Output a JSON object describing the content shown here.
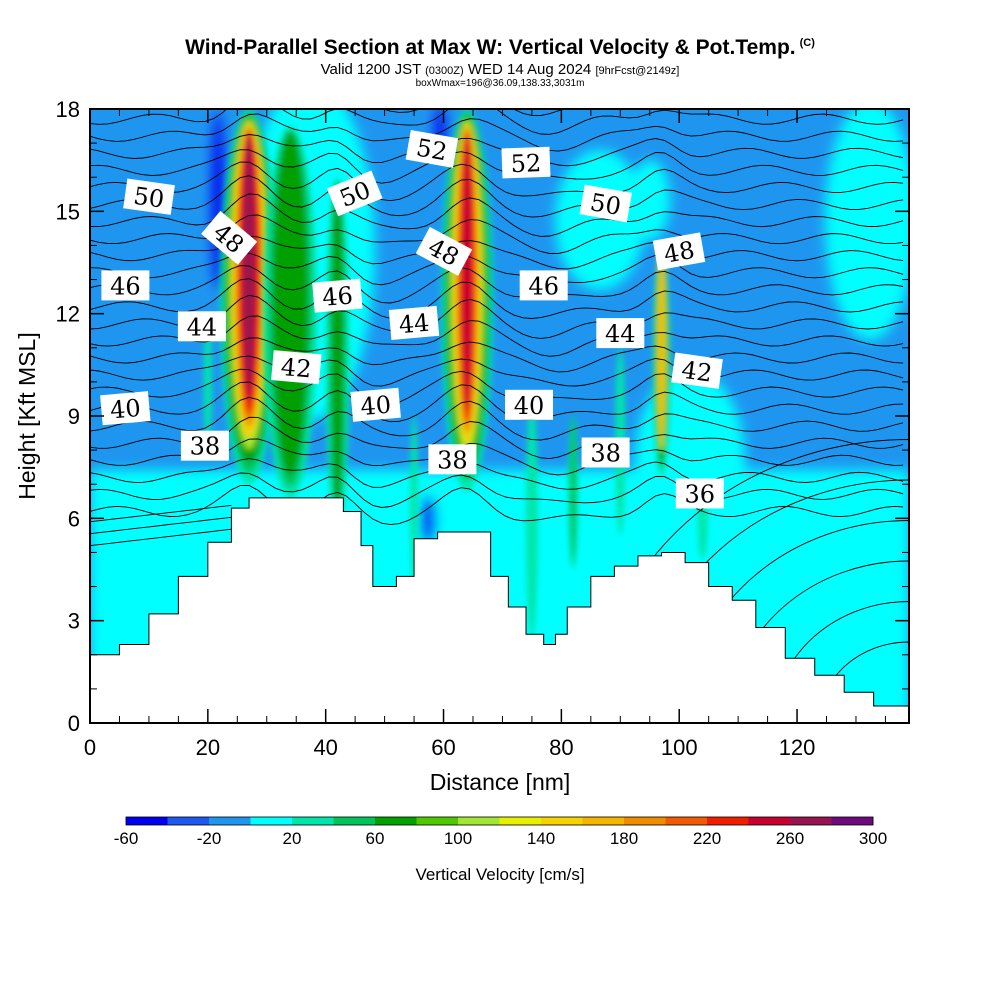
{
  "header": {
    "title": "Wind-Parallel Section at Max W: Vertical Velocity & Pot.Temp.",
    "copyright": "(C)",
    "valid_prefix": "Valid 1200 JST",
    "valid_utc": "(0300Z)",
    "valid_date": "WED 14 Aug 2024",
    "forecast": "[9hrFcst@2149z]",
    "boxline": "boxWmax=196@36.09,138.33,3031m"
  },
  "colorbar": {
    "label": "Vertical Velocity [cm/s]",
    "colors": [
      "#0000f0",
      "#1e5af0",
      "#1e96f0",
      "#00ffff",
      "#00e6aa",
      "#00c35a",
      "#00a000",
      "#50c800",
      "#a0e632",
      "#e6f000",
      "#f5d200",
      "#f5b400",
      "#f08c00",
      "#f05a00",
      "#f01e00",
      "#c80032",
      "#961450",
      "#6e0a7d"
    ],
    "tick_labels": [
      "-60",
      "-20",
      "20",
      "60",
      "100",
      "140",
      "180",
      "220",
      "260",
      "300"
    ]
  },
  "chart_data": {
    "type": "heatmap",
    "title": "Wind-Parallel Section at Max W: Vertical Velocity & Pot.Temp.",
    "xlabel": "Distance [nm]",
    "ylabel": "Height [Kft MSL]",
    "xlim": [
      0,
      139
    ],
    "ylim": [
      0,
      18
    ],
    "x_ticks": [
      "0",
      "20",
      "40",
      "60",
      "80",
      "100",
      "120"
    ],
    "y_ticks": [
      "0",
      "3",
      "6",
      "9",
      "12",
      "15",
      "18"
    ],
    "fill_variable": "Vertical Velocity [cm/s]",
    "contour_variable": "Pot.Temp. (C)",
    "updraft_cores": [
      {
        "x": 27,
        "peak_w": 270
      },
      {
        "x": 34,
        "peak_w": 100
      },
      {
        "x": 42,
        "peak_w": 60
      },
      {
        "x": 63,
        "peak_w": 260
      },
      {
        "x": 97,
        "peak_w": 140
      }
    ],
    "terrain": [
      [
        0,
        2
      ],
      [
        5,
        2.3
      ],
      [
        10,
        3.2
      ],
      [
        15,
        4.3
      ],
      [
        20,
        5.3
      ],
      [
        24,
        6.3
      ],
      [
        27,
        6.6
      ],
      [
        33,
        6.6
      ],
      [
        40,
        6.6
      ],
      [
        43,
        6.2
      ],
      [
        46,
        5.2
      ],
      [
        48,
        4
      ],
      [
        52,
        4.3
      ],
      [
        55,
        5.4
      ],
      [
        59,
        5.6
      ],
      [
        63,
        5.6
      ],
      [
        66,
        5.6
      ],
      [
        68,
        4.3
      ],
      [
        71,
        3.4
      ],
      [
        74,
        2.6
      ],
      [
        77,
        2.3
      ],
      [
        79,
        2.6
      ],
      [
        81,
        3.4
      ],
      [
        85,
        4.3
      ],
      [
        89,
        4.6
      ],
      [
        93,
        4.9
      ],
      [
        97,
        5
      ],
      [
        101,
        4.7
      ],
      [
        105,
        4
      ],
      [
        109,
        3.6
      ],
      [
        113,
        2.8
      ],
      [
        118,
        1.9
      ],
      [
        123,
        1.4
      ],
      [
        128,
        0.9
      ],
      [
        133,
        0.5
      ],
      [
        139,
        0.3
      ]
    ],
    "contour_labels": [
      {
        "text": "50",
        "x": 10,
        "y": 15.4,
        "angle": 8
      },
      {
        "text": "48",
        "x": 23.5,
        "y": 14.2,
        "angle": 40
      },
      {
        "text": "50",
        "x": 45,
        "y": 15.5,
        "angle": -22
      },
      {
        "text": "52",
        "x": 58,
        "y": 16.8,
        "angle": 10
      },
      {
        "text": "52",
        "x": 74,
        "y": 16.4,
        "angle": -2
      },
      {
        "text": "50",
        "x": 87.5,
        "y": 15.2,
        "angle": 10
      },
      {
        "text": "48",
        "x": 60,
        "y": 13.8,
        "angle": 28
      },
      {
        "text": "48",
        "x": 100,
        "y": 13.8,
        "angle": -10
      },
      {
        "text": "46",
        "x": 6,
        "y": 12.8,
        "angle": 0
      },
      {
        "text": "46",
        "x": 42,
        "y": 12.5,
        "angle": -5
      },
      {
        "text": "46",
        "x": 77,
        "y": 12.8,
        "angle": 0
      },
      {
        "text": "44",
        "x": 19,
        "y": 11.6,
        "angle": 0
      },
      {
        "text": "44",
        "x": 55,
        "y": 11.7,
        "angle": -5
      },
      {
        "text": "44",
        "x": 90,
        "y": 11.4,
        "angle": 0
      },
      {
        "text": "42",
        "x": 35,
        "y": 10.4,
        "angle": 5
      },
      {
        "text": "42",
        "x": 103,
        "y": 10.3,
        "angle": 8
      },
      {
        "text": "40",
        "x": 6,
        "y": 9.2,
        "angle": -5
      },
      {
        "text": "40",
        "x": 48.5,
        "y": 9.3,
        "angle": -5
      },
      {
        "text": "40",
        "x": 74.5,
        "y": 9.3,
        "angle": 0
      },
      {
        "text": "38",
        "x": 19.5,
        "y": 8.1,
        "angle": 0
      },
      {
        "text": "38",
        "x": 61.5,
        "y": 7.7,
        "angle": 0
      },
      {
        "text": "38",
        "x": 87.5,
        "y": 7.9,
        "angle": 0
      },
      {
        "text": "36",
        "x": 103.5,
        "y": 6.7,
        "angle": 0
      }
    ]
  }
}
